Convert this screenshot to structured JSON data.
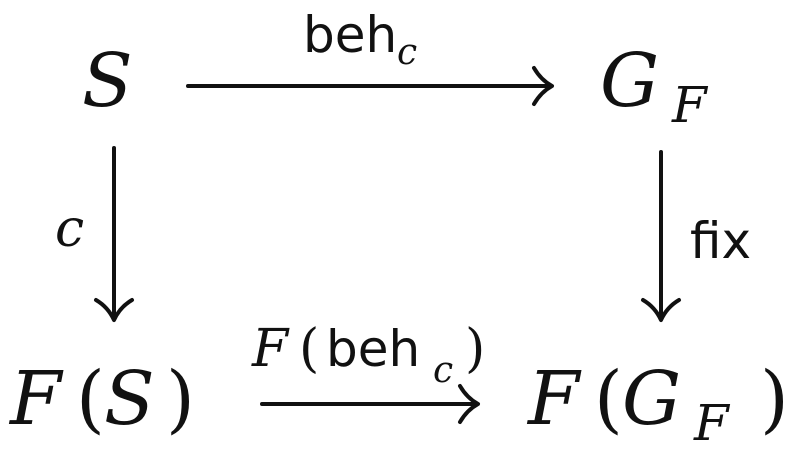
{
  "nodes": {
    "top_left": {
      "base": "S"
    },
    "top_right": {
      "base": "G",
      "sub": "F"
    },
    "bottom_left": {
      "fn": "F",
      "open": "(",
      "arg": "S",
      "close": ")"
    },
    "bottom_right": {
      "fn": "F",
      "open": "(",
      "arg": "G",
      "sub": "F",
      "close": ")"
    }
  },
  "arrows": {
    "top": {
      "label_text": "beh",
      "label_sub": "c"
    },
    "left": {
      "label": "c"
    },
    "right": {
      "label": "fix"
    },
    "bottom": {
      "label_fn": "F",
      "label_open": "(",
      "label_text": "beh",
      "label_sub": "c",
      "label_close": ")"
    }
  }
}
